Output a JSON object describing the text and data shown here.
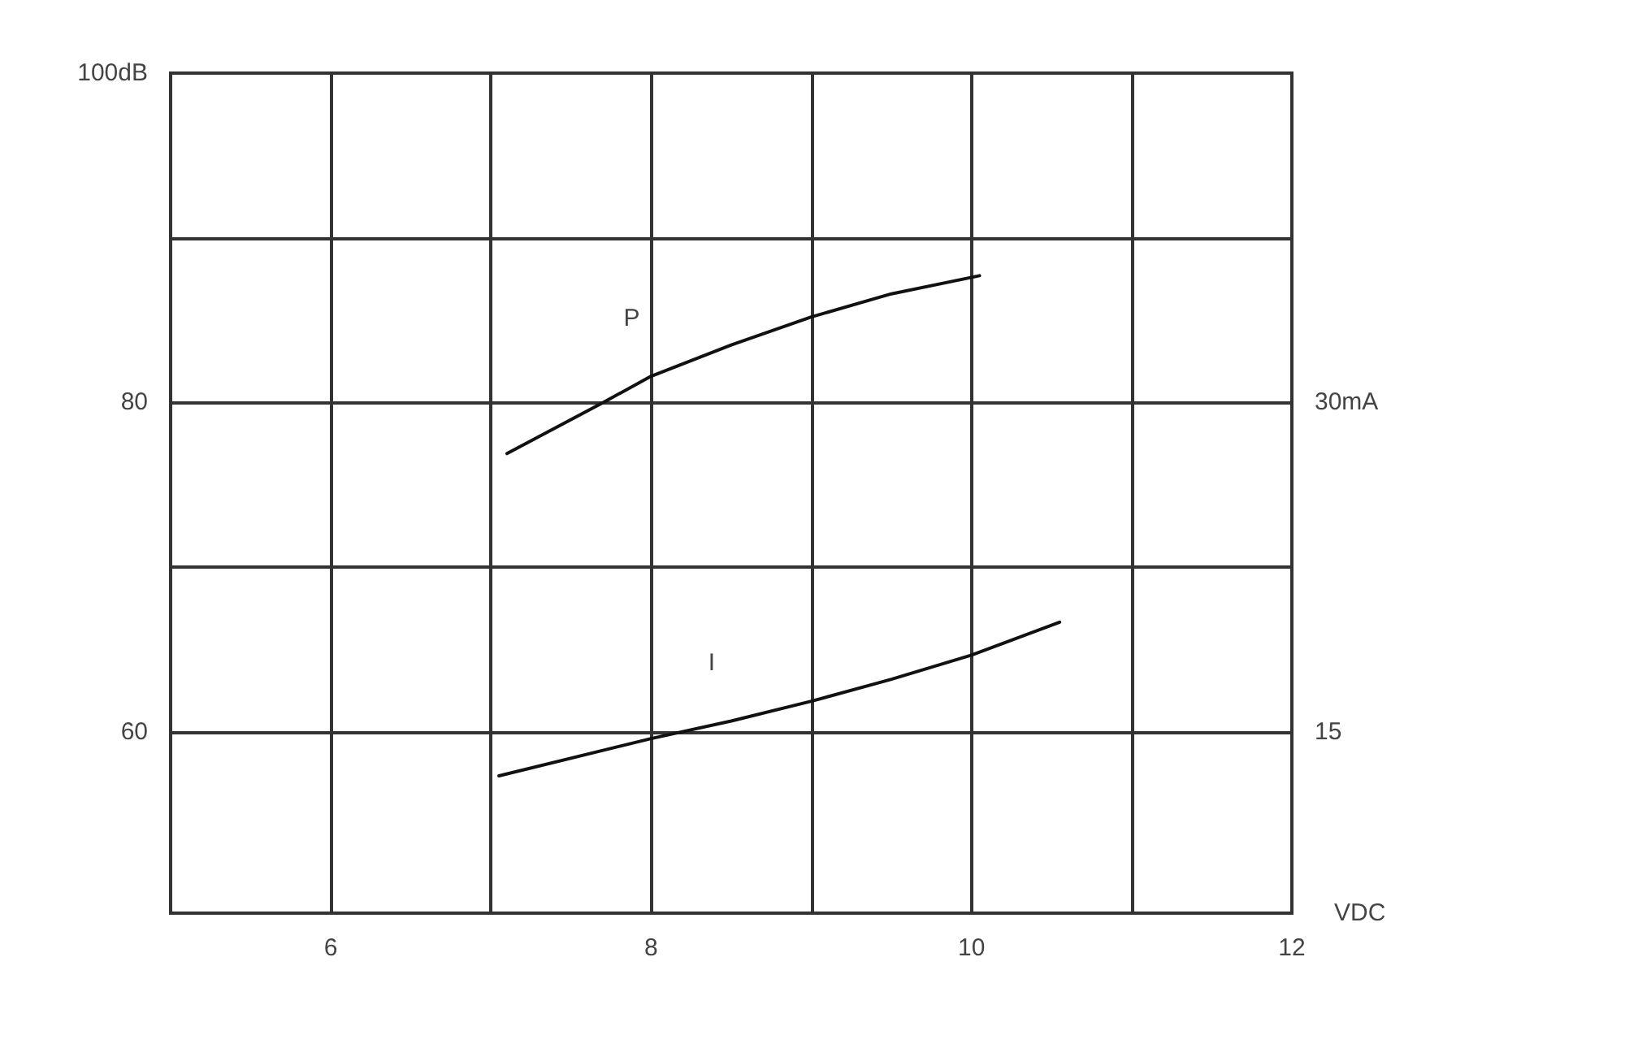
{
  "chart_data": {
    "type": "line",
    "xlabel": "VDC",
    "xlim": [
      5,
      12
    ],
    "xticks": [
      {
        "value": 5,
        "label": null
      },
      6,
      {
        "value": 7,
        "label": null
      },
      8,
      {
        "value": 9,
        "label": null
      },
      10,
      {
        "value": 11,
        "label": null
      },
      12
    ],
    "ylim": [
      49,
      100
    ],
    "yticks": [
      60,
      {
        "value": 70,
        "label": null
      },
      80,
      {
        "value": 90,
        "label": null
      },
      {
        "value": 100,
        "label": "100dB"
      }
    ],
    "y2lim": [
      6.75,
      45
    ],
    "y2ticks": [
      15,
      {
        "value": 30,
        "label": "30mA"
      }
    ],
    "grid": true,
    "marker": "none",
    "line_style": "solid",
    "series": [
      {
        "name": "P",
        "color": "#111111",
        "x": [
          7.1,
          7.7,
          8,
          8.5,
          9,
          9.5,
          10.05
        ],
        "values": [
          76.9,
          80.0,
          81.6,
          83.5,
          85.2,
          86.6,
          87.7
        ]
      },
      {
        "name": "I",
        "color": "#111111",
        "axis": "y2",
        "x": [
          7.05,
          8,
          8.5,
          9,
          9.5,
          10,
          10.55
        ],
        "values": [
          13.0,
          14.7,
          15.5,
          16.4,
          17.4,
          18.5,
          20.0
        ]
      }
    ]
  }
}
